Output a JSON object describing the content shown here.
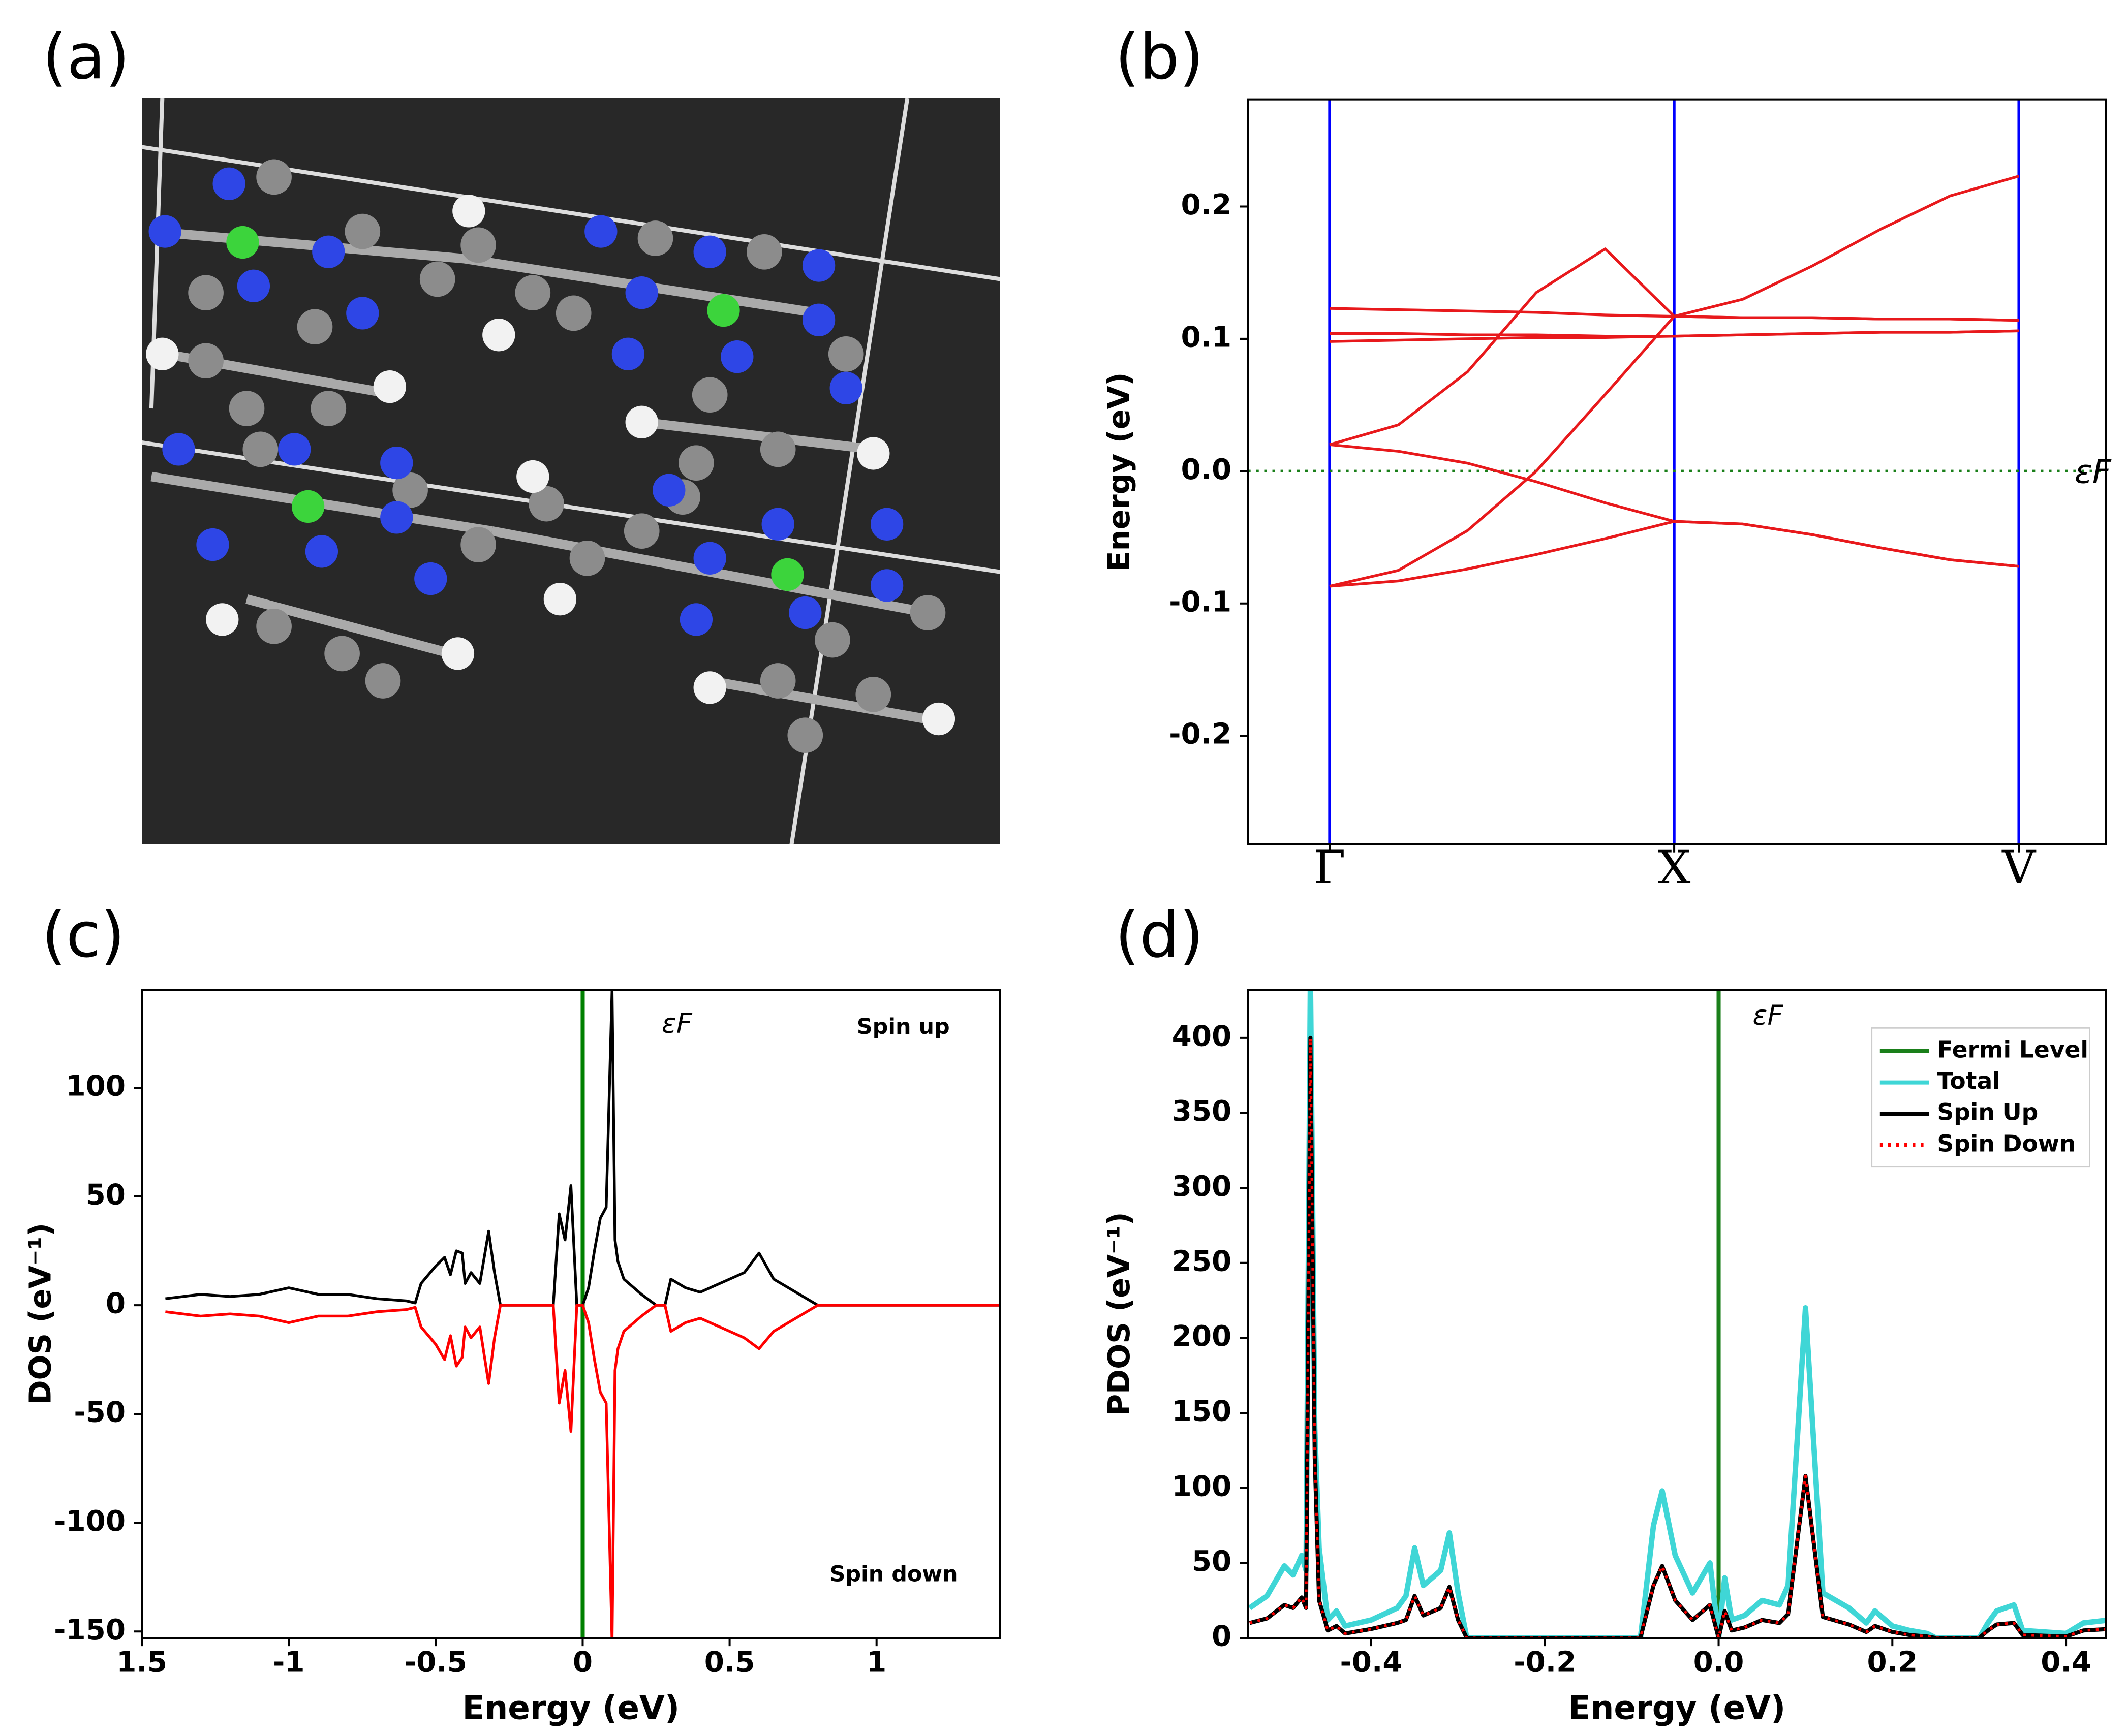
{
  "image_panel": {
    "label": "(a)"
  },
  "chart_data": [
    {
      "type": "line",
      "panel_label": "(b)",
      "ylabel": "Energy (eV)",
      "x": [
        0,
        0.2,
        0.4,
        0.6,
        0.8,
        1,
        1.2,
        1.4,
        1.6,
        1.8,
        2
      ],
      "series": [
        {
          "color": "#e8191c",
          "values": [
            0.02,
            0.035,
            0.075,
            0.135,
            0.168,
            0.117,
            0.13,
            0.155,
            0.183,
            0.208,
            0.223
          ]
        },
        {
          "color": "#e8191c",
          "values": [
            -0.087,
            -0.075,
            -0.045,
            0.0,
            0.058,
            0.117,
            0.116,
            0.116,
            0.115,
            0.115,
            0.114
          ]
        },
        {
          "color": "#e8191c",
          "values": [
            0.02,
            0.015,
            0.006,
            -0.008,
            -0.024,
            -0.038,
            -0.04,
            -0.048,
            -0.058,
            -0.067,
            -0.072
          ]
        },
        {
          "color": "#e8191c",
          "values": [
            -0.087,
            -0.083,
            -0.074,
            -0.063,
            -0.051,
            -0.038,
            -0.04,
            -0.048,
            -0.058,
            -0.067,
            -0.072
          ]
        },
        {
          "color": "#e8191c",
          "values": [
            0.123,
            0.122,
            0.121,
            0.12,
            0.118,
            0.117,
            0.116,
            0.116,
            0.115,
            0.115,
            0.114
          ]
        },
        {
          "color": "#e8191c",
          "values": [
            0.104,
            0.104,
            0.103,
            0.103,
            0.102,
            0.102,
            0.103,
            0.104,
            0.105,
            0.105,
            0.106
          ]
        },
        {
          "color": "#e8191c",
          "values": [
            0.098,
            0.099,
            0.1,
            0.101,
            0.101,
            0.102,
            0.103,
            0.104,
            0.105,
            0.105,
            0.106
          ]
        }
      ],
      "xlim": [
        -0.237,
        2.253
      ],
      "ylim": [
        -0.282,
        0.281
      ],
      "xticks": [
        {
          "value": 0,
          "label": "Γ"
        },
        {
          "value": 1,
          "label": "X"
        },
        {
          "value": 2,
          "label": "V"
        }
      ],
      "yticks": [
        -0.2,
        -0.1,
        {
          "value": 0,
          "label": "0.0"
        },
        0.1,
        0.2
      ],
      "xtick_lines": true,
      "xtick_line_color": "#0000ff",
      "fermi": {
        "value": 0,
        "label": "εF",
        "color": "#1a7f1a",
        "style": "dotted"
      }
    },
    {
      "type": "line",
      "panel_label": "(c)",
      "ylabel": "DOS (eV⁻¹)",
      "xlabel": "Energy (eV)",
      "x": [
        -1.42,
        -1.3,
        -1.2,
        -1.1,
        -1.0,
        -0.9,
        -0.8,
        -0.7,
        -0.6,
        -0.57,
        -0.55,
        -0.5,
        -0.47,
        -0.45,
        -0.43,
        -0.41,
        -0.4,
        -0.38,
        -0.35,
        -0.32,
        -0.3,
        -0.28,
        -0.2,
        -0.1,
        -0.08,
        -0.06,
        -0.04,
        -0.02,
        0.0,
        0.02,
        0.04,
        0.06,
        0.08,
        0.1,
        0.11,
        0.12,
        0.14,
        0.2,
        0.25,
        0.28,
        0.3,
        0.35,
        0.4,
        0.5,
        0.55,
        0.6,
        0.65,
        0.7,
        0.75,
        0.8,
        1.0,
        1.42
      ],
      "series": [
        {
          "color": "#000000",
          "values": [
            3,
            5,
            4,
            5,
            8,
            5,
            5,
            3,
            2,
            1,
            10,
            18,
            22,
            14,
            25,
            24,
            10,
            15,
            10,
            34,
            15,
            0,
            0,
            0,
            42,
            30,
            55,
            0,
            0,
            8,
            25,
            40,
            45,
            145,
            30,
            20,
            12,
            5,
            0,
            0,
            12,
            8,
            6,
            12,
            15,
            24,
            12,
            8,
            4,
            0,
            0,
            0
          ]
        },
        {
          "color": "#ff0000",
          "values": [
            -3,
            -5,
            -4,
            -5,
            -8,
            -5,
            -5,
            -3,
            -2,
            -1,
            -10,
            -18,
            -25,
            -14,
            -28,
            -24,
            -10,
            -15,
            -10,
            -36,
            -15,
            0,
            0,
            0,
            -45,
            -30,
            -58,
            0,
            0,
            -8,
            -25,
            -40,
            -45,
            -155,
            -30,
            -20,
            -12,
            -5,
            0,
            0,
            -12,
            -8,
            -6,
            -12,
            -15,
            -20,
            -12,
            -8,
            -4,
            0,
            0,
            0
          ]
        }
      ],
      "xlim": [
        -1.5,
        1.42
      ],
      "ylim": [
        -153,
        145
      ],
      "xticks": [
        {
          "value": -1.5,
          "label": "1.5"
        },
        -1,
        -0.5,
        0,
        0.5,
        1
      ],
      "yticks": [
        -150,
        -100,
        -50,
        0,
        50,
        100
      ],
      "fermi": {
        "value": 0,
        "label": "εF",
        "color": "#008000",
        "style": "solid"
      },
      "annotations": [
        "Spin  up",
        "Spin  down"
      ]
    },
    {
      "type": "line",
      "panel_label": "(d)",
      "ylabel": "PDOS (eV⁻¹)",
      "xlabel": "Energy (eV)",
      "x": [
        -0.54,
        -0.52,
        -0.5,
        -0.49,
        -0.48,
        -0.475,
        -0.47,
        -0.465,
        -0.46,
        -0.45,
        -0.44,
        -0.43,
        -0.4,
        -0.37,
        -0.36,
        -0.35,
        -0.34,
        -0.32,
        -0.31,
        -0.3,
        -0.29,
        -0.2,
        -0.09,
        -0.075,
        -0.065,
        -0.05,
        -0.03,
        -0.01,
        0.0,
        0.007,
        0.015,
        0.03,
        0.05,
        0.07,
        0.08,
        0.1,
        0.12,
        0.15,
        0.17,
        0.18,
        0.2,
        0.22,
        0.24,
        0.25,
        0.3,
        0.31,
        0.32,
        0.34,
        0.35,
        0.4,
        0.42,
        0.45
      ],
      "series": [
        {
          "name": "Total",
          "color": "#3fd6d6",
          "width": 4,
          "values": [
            20,
            28,
            48,
            42,
            55,
            45,
            440,
            140,
            60,
            12,
            18,
            8,
            12,
            20,
            28,
            60,
            35,
            45,
            70,
            30,
            0,
            0,
            0,
            75,
            98,
            55,
            30,
            50,
            0,
            40,
            12,
            15,
            25,
            22,
            35,
            220,
            30,
            20,
            10,
            18,
            8,
            5,
            3,
            0,
            0,
            10,
            18,
            22,
            5,
            3,
            10,
            12
          ]
        },
        {
          "name": "Spin  Up",
          "color": "#000000",
          "width": 3,
          "values": [
            10,
            13,
            22,
            20,
            27,
            20,
            400,
            120,
            25,
            5,
            8,
            3,
            6,
            10,
            12,
            28,
            15,
            20,
            34,
            12,
            0,
            0,
            0,
            35,
            48,
            25,
            12,
            22,
            0,
            18,
            5,
            7,
            12,
            10,
            16,
            108,
            14,
            9,
            4,
            8,
            4,
            2,
            1,
            0,
            0,
            5,
            9,
            10,
            2,
            1,
            5,
            6
          ]
        },
        {
          "name": "Spin  Down",
          "color": "#ff0000",
          "width": 2,
          "style": "dotted",
          "values": [
            10,
            13,
            22,
            20,
            27,
            20,
            400,
            120,
            25,
            5,
            8,
            3,
            6,
            10,
            12,
            28,
            15,
            20,
            34,
            12,
            0,
            0,
            0,
            35,
            48,
            25,
            12,
            22,
            0,
            18,
            5,
            7,
            12,
            10,
            16,
            108,
            14,
            9,
            4,
            8,
            4,
            2,
            1,
            0,
            0,
            5,
            9,
            10,
            2,
            1,
            5,
            6
          ]
        }
      ],
      "xlim": [
        -0.542,
        0.446
      ],
      "ylim": [
        0,
        432
      ],
      "xticks": [
        -0.4,
        -0.2,
        {
          "value": 0,
          "label": "0.0"
        },
        0.2,
        0.4
      ],
      "yticks": [
        0,
        50,
        100,
        150,
        200,
        250,
        300,
        350,
        400
      ],
      "fermi": {
        "value": 0,
        "name": "Fermi  Level",
        "label": "εF",
        "color": "#1a7f1a",
        "style": "solid"
      },
      "legend": "upper right"
    }
  ]
}
